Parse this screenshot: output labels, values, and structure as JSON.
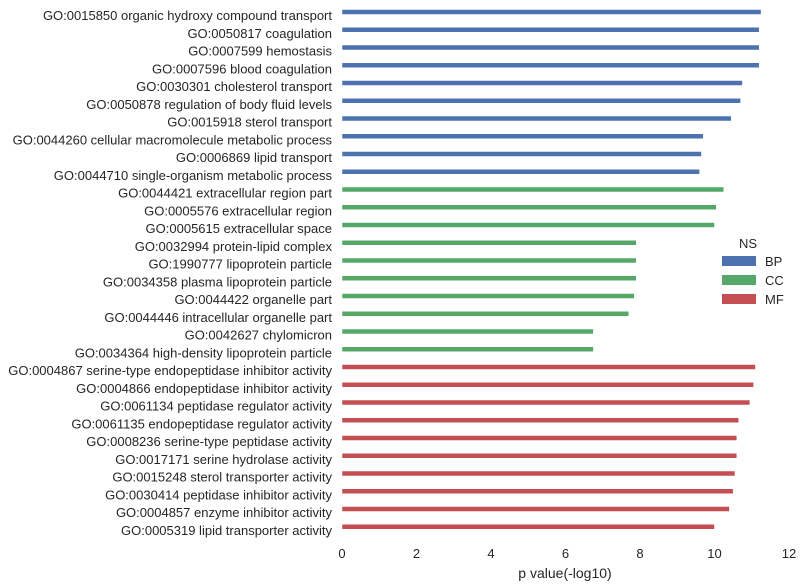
{
  "chart_data": {
    "type": "bar",
    "orientation": "horizontal",
    "xlabel": "p value(-log10)",
    "xlim": [
      0,
      12
    ],
    "xticks": [
      0,
      2,
      4,
      6,
      8,
      10,
      12
    ],
    "grid": false,
    "legend": {
      "title": "NS",
      "placement": "right",
      "entries": [
        {
          "name": "BP",
          "color": "#4c72b0"
        },
        {
          "name": "CC",
          "color": "#55a868"
        },
        {
          "name": "MF",
          "color": "#c44e52"
        }
      ]
    },
    "categories": [
      "GO:0015850 organic hydroxy compound transport",
      "GO:0050817 coagulation",
      "GO:0007599 hemostasis",
      "GO:0007596 blood coagulation",
      "GO:0030301 cholesterol transport",
      "GO:0050878 regulation of body fluid levels",
      "GO:0015918 sterol transport",
      "GO:0044260 cellular macromolecule metabolic process",
      "GO:0006869 lipid transport",
      "GO:0044710 single-organism metabolic process",
      "GO:0044421 extracellular region part",
      "GO:0005576 extracellular region",
      "GO:0005615 extracellular space",
      "GO:0032994 protein-lipid complex",
      "GO:1990777 lipoprotein particle",
      "GO:0034358 plasma lipoprotein particle",
      "GO:0044422 organelle part",
      "GO:0044446 intracellular organelle part",
      "GO:0042627 chylomicron",
      "GO:0034364 high-density lipoprotein particle",
      "GO:0004867 serine-type endopeptidase inhibitor activity",
      "GO:0004866 endopeptidase inhibitor activity",
      "GO:0061134 peptidase regulator activity",
      "GO:0061135 endopeptidase regulator activity",
      "GO:0008236 serine-type peptidase activity",
      "GO:0017171 serine hydrolase activity",
      "GO:0015248 sterol transporter activity",
      "GO:0030414 peptidase inhibitor activity",
      "GO:0004857 enzyme inhibitor activity",
      "GO:0005319 lipid transporter activity"
    ],
    "values": [
      11.25,
      11.2,
      11.2,
      11.2,
      10.75,
      10.7,
      10.45,
      9.7,
      9.65,
      9.6,
      10.25,
      10.05,
      10.0,
      7.9,
      7.9,
      7.9,
      7.85,
      7.7,
      6.75,
      6.75,
      11.1,
      11.05,
      10.95,
      10.65,
      10.6,
      10.6,
      10.55,
      10.5,
      10.4,
      10.0
    ],
    "groups": [
      "BP",
      "BP",
      "BP",
      "BP",
      "BP",
      "BP",
      "BP",
      "BP",
      "BP",
      "BP",
      "CC",
      "CC",
      "CC",
      "CC",
      "CC",
      "CC",
      "CC",
      "CC",
      "CC",
      "CC",
      "MF",
      "MF",
      "MF",
      "MF",
      "MF",
      "MF",
      "MF",
      "MF",
      "MF",
      "MF"
    ]
  }
}
